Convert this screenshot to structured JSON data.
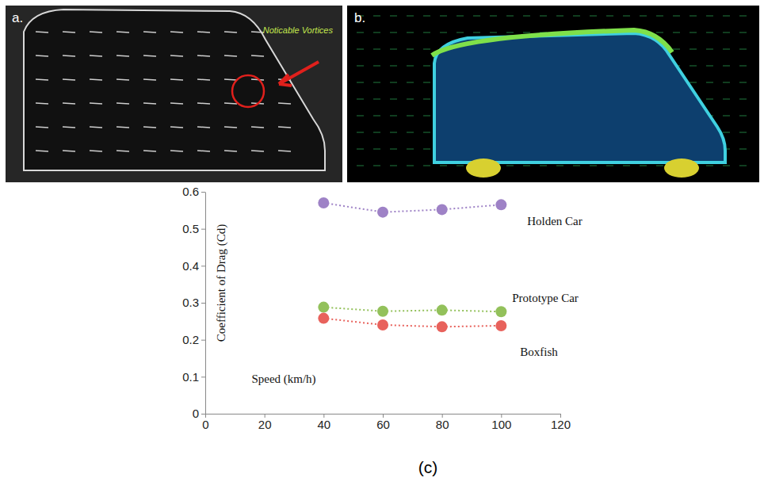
{
  "panels": [
    {
      "label": "a.",
      "annotation": "Noticable Vortices"
    },
    {
      "label": "b."
    }
  ],
  "chart_data": {
    "type": "scatter",
    "caption": "(c)",
    "x_label": "Speed (km/h)",
    "y_label": "Coefficient of Drag (Cd)",
    "x": [
      40,
      60,
      80,
      100
    ],
    "series": [
      {
        "name": "Holden Car",
        "color": "#9e82c6",
        "values": [
          0.57,
          0.545,
          0.552,
          0.565
        ],
        "marker": "circle",
        "line_style": "dotted"
      },
      {
        "name": "Prototype Car",
        "color": "#93c15b",
        "values": [
          0.288,
          0.277,
          0.28,
          0.276
        ],
        "marker": "circle",
        "line_style": "dotted"
      },
      {
        "name": "Boxfish",
        "color": "#e8625c",
        "values": [
          0.258,
          0.24,
          0.235,
          0.238
        ],
        "marker": "circle",
        "line_style": "dotted"
      }
    ],
    "xlim": [
      0,
      120
    ],
    "xticks": [
      0,
      20,
      40,
      60,
      80,
      100,
      120
    ],
    "ylim": [
      0,
      0.6
    ],
    "yticks": [
      0,
      0.1,
      0.2,
      0.3,
      0.4,
      0.5,
      0.6
    ],
    "grid": false
  }
}
